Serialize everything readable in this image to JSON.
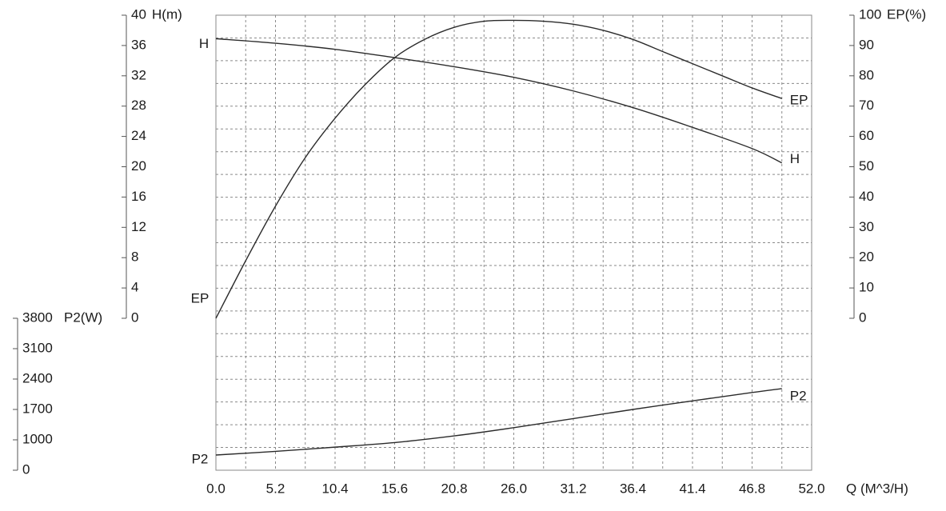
{
  "chart_data": {
    "type": "line",
    "title": "",
    "grid": true,
    "x_axis": {
      "label": "Q (M^3/H)",
      "range": [
        0,
        52
      ],
      "ticks": [
        "0.0",
        "5.2",
        "10.4",
        "15.6",
        "20.8",
        "26.0",
        "31.2",
        "36.4",
        "41.4",
        "46.8",
        "52.0"
      ]
    },
    "y_axes": {
      "head": {
        "label": "H(m)",
        "position": "left",
        "range": [
          0,
          40
        ],
        "ticks": [
          "0",
          "4",
          "8",
          "12",
          "16",
          "20",
          "24",
          "28",
          "32",
          "36",
          "40"
        ]
      },
      "efficiency": {
        "label": "EP(%)",
        "position": "right",
        "range": [
          0,
          100
        ],
        "ticks": [
          "0",
          "10",
          "20",
          "30",
          "40",
          "50",
          "60",
          "70",
          "80",
          "90",
          "100"
        ]
      },
      "power": {
        "label": "P2(W)",
        "position": "left-lower",
        "range": [
          0,
          3800
        ],
        "ticks": [
          "0",
          "1000",
          "1700",
          "2400",
          "3100",
          "3800"
        ]
      }
    },
    "series": [
      {
        "name": "H",
        "axis": "head",
        "x": [
          0,
          5.2,
          10.4,
          15.6,
          20.8,
          26.0,
          31.2,
          36.4,
          41.4,
          46.8,
          49.4
        ],
        "y": [
          36.9,
          36.3,
          35.5,
          34.4,
          33.2,
          31.8,
          30.0,
          27.8,
          25.3,
          22.4,
          20.5
        ]
      },
      {
        "name": "EP",
        "axis": "efficiency",
        "x": [
          0,
          2.6,
          5.2,
          7.8,
          10.4,
          13.0,
          15.6,
          18.2,
          20.8,
          23.4,
          26.0,
          28.6,
          31.2,
          33.8,
          36.4,
          39.0,
          41.6,
          44.2,
          46.8,
          49.4
        ],
        "y": [
          0,
          19,
          37,
          53,
          66,
          77,
          86,
          92,
          96,
          98,
          98.3,
          98,
          97,
          95,
          92,
          88,
          84,
          80,
          76,
          72.5
        ]
      },
      {
        "name": "P2",
        "axis": "power",
        "x": [
          0,
          5.2,
          10.4,
          15.6,
          20.8,
          26.0,
          31.2,
          36.4,
          41.4,
          46.8,
          49.4
        ],
        "y": [
          500,
          620,
          760,
          910,
          1090,
          1280,
          1490,
          1700,
          1890,
          2090,
          2180
        ]
      }
    ],
    "annotations": [
      "H",
      "EP",
      "P2",
      "EP",
      "H",
      "P2"
    ]
  }
}
